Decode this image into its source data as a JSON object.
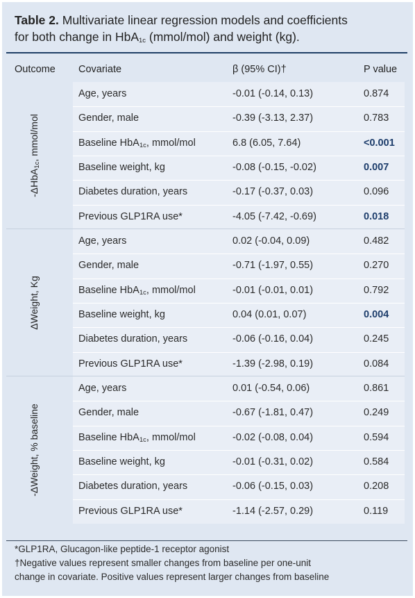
{
  "title": {
    "bold": "Table 2.",
    "line1_rest": " Multivariate linear regression models and coefficients",
    "line2_pre": "for both change in HbA",
    "line2_sub": "1c",
    "line2_post": " (mmol/mol) and weight (kg)."
  },
  "headers": {
    "outcome": "Outcome",
    "covariate": "Covariate",
    "beta": "β (95% CI)†",
    "p": "P value"
  },
  "groups": [
    {
      "label_pre": "-ΔHbA",
      "label_sub": "1c",
      "label_post": ", mmol/mol",
      "rows": [
        {
          "covariate": "Age, years",
          "beta": "-0.01 (-0.14, 0.13)",
          "p": "0.874",
          "sig": false
        },
        {
          "covariate": "Gender, male",
          "beta": "-0.39 (-3.13, 2.37)",
          "p": "0.783",
          "sig": false
        },
        {
          "covariate_pre": "Baseline HbA",
          "covariate_sub": "1c",
          "covariate_post": ", mmol/mol",
          "beta": "6.8 (6.05, 7.64)",
          "p": "<0.001",
          "sig": true
        },
        {
          "covariate": "Baseline weight, kg",
          "beta": "-0.08 (-0.15, -0.02)",
          "p": "0.007",
          "sig": true
        },
        {
          "covariate": "Diabetes duration, years",
          "beta": "-0.17 (-0.37, 0.03)",
          "p": "0.096",
          "sig": false
        },
        {
          "covariate": "Previous GLP1RA use*",
          "beta": "-4.05 (-7.42, -0.69)",
          "p": "0.018",
          "sig": true
        }
      ]
    },
    {
      "label_pre": "ΔWeight, Kg",
      "rows": [
        {
          "covariate": "Age, years",
          "beta": "0.02 (-0.04, 0.09)",
          "p": "0.482",
          "sig": false
        },
        {
          "covariate": "Gender, male",
          "beta": "-0.71 (-1.97, 0.55)",
          "p": "0.270",
          "sig": false
        },
        {
          "covariate_pre": "Baseline HbA",
          "covariate_sub": "1c",
          "covariate_post": ", mmol/mol",
          "beta": "-0.01 (-0.01, 0.01)",
          "p": "0.792",
          "sig": false
        },
        {
          "covariate": "Baseline weight, kg",
          "beta": "0.04 (0.01, 0.07)",
          "p": "0.004",
          "sig": true
        },
        {
          "covariate": "Diabetes duration, years",
          "beta": "-0.06 (-0.16, 0.04)",
          "p": "0.245",
          "sig": false
        },
        {
          "covariate": "Previous GLP1RA use*",
          "beta": "-1.39 (-2.98, 0.19)",
          "p": "0.084",
          "sig": false
        }
      ]
    },
    {
      "label_pre": "-ΔWeight, % baseline",
      "rows": [
        {
          "covariate": "Age, years",
          "beta": "0.01 (-0.54, 0.06)",
          "p": "0.861",
          "sig": false
        },
        {
          "covariate": "Gender, male",
          "beta": "-0.67 (-1.81, 0.47)",
          "p": "0.249",
          "sig": false
        },
        {
          "covariate_pre": "Baseline HbA",
          "covariate_sub": "1c",
          "covariate_post": ", mmol/mol",
          "beta": "-0.02 (-0.08, 0.04)",
          "p": "0.594",
          "sig": false
        },
        {
          "covariate": "Baseline weight, kg",
          "beta": "-0.01 (-0.31, 0.02)",
          "p": "0.584",
          "sig": false
        },
        {
          "covariate": "Diabetes duration, years",
          "beta": "-0.06 (-0.15, 0.03)",
          "p": "0.208",
          "sig": false
        },
        {
          "covariate": "Previous GLP1RA use*",
          "beta": "-1.14 (-2.57, 0.29)",
          "p": "0.119",
          "sig": false
        }
      ]
    }
  ],
  "footnotes": [
    "*GLP1RA, Glucagon-like peptide-1 receptor agonist",
    "†Negative values represent smaller changes from baseline per one-unit",
    "change in covariate. Positive values represent larger changes from baseline"
  ]
}
